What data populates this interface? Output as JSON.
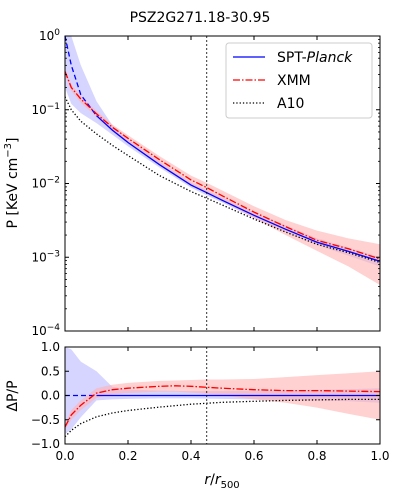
{
  "figure": {
    "title": "PSZ2G271.18-30.95",
    "xlabel_main": "r",
    "xlabel_sub": "500",
    "colors": {
      "spt": "#0000ff",
      "xmm": "#ff0000",
      "a10": "#000000",
      "spt_band": "#b3b3ff",
      "xmm_band": "#ffb3b3",
      "vline": "#000000"
    }
  },
  "chart_data": [
    {
      "type": "line",
      "title": "PSZ2G271.18-30.95",
      "xlabel": "r/r500",
      "ylabel": "P [KeV cm⁻³]",
      "yscale": "log",
      "xlim": [
        0,
        1
      ],
      "ylim": [
        0.0001,
        1
      ],
      "x_ticks": [
        0,
        0.2,
        0.4,
        0.6,
        0.8,
        1.0
      ],
      "y_ticks": [
        {
          "value": 0.0001,
          "label_base": "10",
          "label_exp": "−4"
        },
        {
          "value": 0.001,
          "label_base": "10",
          "label_exp": "−3"
        },
        {
          "value": 0.01,
          "label_base": "10",
          "label_exp": "−2"
        },
        {
          "value": 0.1,
          "label_base": "10",
          "label_exp": "−1"
        },
        {
          "value": 1,
          "label_base": "10",
          "label_exp": "0"
        }
      ],
      "vline_x": 0.45,
      "legend": {
        "placement": "top-right",
        "entries": [
          {
            "series": "spt",
            "prefix": "SPT-",
            "emph": "Planck"
          },
          {
            "series": "xmm",
            "prefix": "XMM",
            "emph": ""
          },
          {
            "series": "a10",
            "prefix": "A10",
            "emph": ""
          }
        ]
      },
      "series": [
        {
          "name": "SPT-Planck",
          "key": "spt",
          "x": [
            0.0,
            0.02,
            0.05,
            0.1,
            0.15,
            0.2,
            0.3,
            0.4,
            0.45,
            0.5,
            0.6,
            0.7,
            0.8,
            0.9,
            1.0
          ],
          "values": [
            1.0,
            0.4,
            0.16,
            0.083,
            0.053,
            0.036,
            0.018,
            0.0095,
            0.0075,
            0.0059,
            0.0037,
            0.0024,
            0.0016,
            0.0012,
            0.00088
          ],
          "lower": [
            0.2,
            0.12,
            0.09,
            0.066,
            0.046,
            0.032,
            0.0165,
            0.0088,
            0.0069,
            0.0055,
            0.0034,
            0.0022,
            0.00146,
            0.00105,
            0.00075
          ],
          "upper": [
            1.0,
            1.0,
            0.4,
            0.13,
            0.062,
            0.04,
            0.0197,
            0.0103,
            0.0081,
            0.0064,
            0.004,
            0.0027,
            0.0018,
            0.00135,
            0.001
          ],
          "dashed_until": 0.1
        },
        {
          "name": "XMM",
          "key": "xmm",
          "x": [
            0.0,
            0.02,
            0.05,
            0.1,
            0.15,
            0.2,
            0.3,
            0.4,
            0.45,
            0.5,
            0.6,
            0.7,
            0.8,
            0.9,
            1.0
          ],
          "values": [
            0.33,
            0.2,
            0.14,
            0.088,
            0.058,
            0.041,
            0.021,
            0.0112,
            0.0088,
            0.0068,
            0.0041,
            0.0026,
            0.0017,
            0.0013,
            0.00095
          ],
          "lower": [
            0.3,
            0.18,
            0.125,
            0.08,
            0.053,
            0.037,
            0.0185,
            0.0097,
            0.0076,
            0.0058,
            0.0034,
            0.002,
            0.00122,
            0.00075,
            0.00042
          ],
          "upper": [
            0.36,
            0.22,
            0.155,
            0.096,
            0.063,
            0.045,
            0.0235,
            0.0128,
            0.0102,
            0.008,
            0.0049,
            0.0032,
            0.0023,
            0.0018,
            0.0015
          ]
        },
        {
          "name": "A10",
          "key": "a10",
          "x": [
            0.0,
            0.02,
            0.05,
            0.1,
            0.15,
            0.2,
            0.3,
            0.4,
            0.45,
            0.5,
            0.6,
            0.7,
            0.8,
            0.9,
            1.0
          ],
          "values": [
            0.15,
            0.1,
            0.07,
            0.047,
            0.033,
            0.024,
            0.0128,
            0.0078,
            0.0063,
            0.0051,
            0.0033,
            0.0022,
            0.0015,
            0.00115,
            0.00085
          ]
        }
      ]
    },
    {
      "type": "line",
      "xlabel": "r/r500",
      "ylabel": "ΔP/P",
      "xlim": [
        0,
        1
      ],
      "ylim": [
        -1,
        1
      ],
      "x_ticks": [
        0,
        0.2,
        0.4,
        0.6,
        0.8,
        1.0
      ],
      "x_tick_labels": [
        "0.0",
        "0.2",
        "0.4",
        "0.6",
        "0.8",
        "1.0"
      ],
      "y_ticks": [
        -1.0,
        -0.5,
        0.0,
        0.5,
        1.0
      ],
      "y_tick_labels": [
        "−1.0",
        "−0.5",
        "0.0",
        "0.5",
        "1.0"
      ],
      "vline_x": 0.45,
      "series": [
        {
          "name": "SPT-Planck",
          "key": "spt",
          "x": [
            0.0,
            0.02,
            0.05,
            0.1,
            0.15,
            0.2,
            0.3,
            0.4,
            0.5,
            0.6,
            0.7,
            0.8,
            0.9,
            1.0
          ],
          "values": [
            0,
            0,
            0,
            0,
            0,
            0,
            0,
            0,
            0,
            0,
            0,
            0,
            0,
            0
          ],
          "lower": [
            -0.8,
            -0.7,
            -0.45,
            -0.1,
            -0.08,
            -0.07,
            -0.06,
            -0.06,
            -0.07,
            -0.08,
            -0.09,
            -0.1,
            -0.12,
            -0.15
          ],
          "upper": [
            1.0,
            0.95,
            0.7,
            0.5,
            0.18,
            0.12,
            0.1,
            0.09,
            0.09,
            0.1,
            0.11,
            0.12,
            0.13,
            0.15
          ],
          "dashed_until": 0.1
        },
        {
          "name": "XMM",
          "key": "xmm",
          "x": [
            0.0,
            0.02,
            0.05,
            0.1,
            0.15,
            0.2,
            0.3,
            0.35,
            0.4,
            0.45,
            0.5,
            0.6,
            0.7,
            0.8,
            0.9,
            1.0
          ],
          "values": [
            -0.65,
            -0.4,
            -0.2,
            0.05,
            0.12,
            0.15,
            0.19,
            0.2,
            0.19,
            0.17,
            0.15,
            0.12,
            0.1,
            0.1,
            0.09,
            0.08
          ],
          "lower": [
            -0.7,
            -0.5,
            -0.3,
            -0.05,
            0.02,
            0.05,
            0.08,
            0.08,
            0.06,
            0.03,
            0.0,
            -0.08,
            -0.15,
            -0.25,
            -0.38,
            -0.5
          ],
          "upper": [
            -0.6,
            -0.3,
            -0.1,
            0.15,
            0.22,
            0.26,
            0.3,
            0.31,
            0.32,
            0.33,
            0.33,
            0.34,
            0.38,
            0.42,
            0.46,
            0.5
          ]
        },
        {
          "name": "A10",
          "key": "a10",
          "x": [
            0.0,
            0.02,
            0.05,
            0.1,
            0.15,
            0.2,
            0.3,
            0.4,
            0.5,
            0.6,
            0.7,
            0.8,
            0.9,
            1.0
          ],
          "values": [
            -0.85,
            -0.72,
            -0.58,
            -0.44,
            -0.36,
            -0.31,
            -0.24,
            -0.18,
            -0.14,
            -0.12,
            -0.1,
            -0.09,
            -0.08,
            -0.08
          ]
        }
      ]
    }
  ]
}
